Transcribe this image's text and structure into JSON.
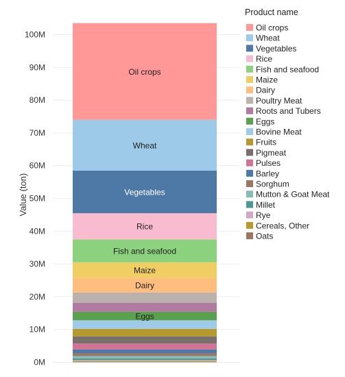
{
  "chart_data": {
    "type": "bar",
    "orientation": "vertical",
    "stacked": true,
    "categories": [
      ""
    ],
    "xlabel": "",
    "ylabel": "Value (ton)",
    "ylim": [
      0,
      107000000
    ],
    "y_ticks": [
      0,
      10000000,
      20000000,
      30000000,
      40000000,
      50000000,
      60000000,
      70000000,
      80000000,
      90000000,
      100000000
    ],
    "y_tick_labels": [
      "0M",
      "10M",
      "20M",
      "30M",
      "40M",
      "50M",
      "60M",
      "70M",
      "80M",
      "90M",
      "100M"
    ],
    "grid": true,
    "legend": {
      "title": "Product name",
      "position": "right"
    },
    "stack_order_top_to_bottom": [
      "Oil crops",
      "Wheat",
      "Vegetables",
      "Rice",
      "Fish and seafood",
      "Maize",
      "Dairy",
      "Poultry Meat",
      "Roots and Tubers",
      "Eggs",
      "Bovine Meat",
      "Fruits",
      "Pigmeat",
      "Pulses",
      "Barley",
      "Sorghum",
      "Mutton & Goat Meat",
      "Millet",
      "Rye",
      "Cereals, Other",
      "Oats"
    ],
    "series": [
      {
        "name": "Oil crops",
        "color": "#ff9896",
        "values": [
          29500000
        ],
        "show_label": true,
        "label_color": "#222222"
      },
      {
        "name": "Wheat",
        "color": "#9ecae9",
        "values": [
          15500000
        ],
        "show_label": true,
        "label_color": "#222222"
      },
      {
        "name": "Vegetables",
        "color": "#4e79a7",
        "values": [
          13000000
        ],
        "show_label": true,
        "label_color": "#ffffff"
      },
      {
        "name": "Rice",
        "color": "#f8bbd0",
        "values": [
          8000000
        ],
        "show_label": true,
        "label_color": "#222222"
      },
      {
        "name": "Fish and seafood",
        "color": "#8cd17d",
        "values": [
          7000000
        ],
        "show_label": true,
        "label_color": "#222222"
      },
      {
        "name": "Maize",
        "color": "#f1ce63",
        "values": [
          4800000
        ],
        "show_label": true,
        "label_color": "#222222"
      },
      {
        "name": "Dairy",
        "color": "#ffbe7d",
        "values": [
          4400000
        ],
        "show_label": true,
        "label_color": "#222222"
      },
      {
        "name": "Poultry Meat",
        "color": "#bab0ac",
        "values": [
          3200000
        ],
        "show_label": false
      },
      {
        "name": "Roots and Tubers",
        "color": "#b07aa1",
        "values": [
          2700000
        ],
        "show_label": false
      },
      {
        "name": "Eggs",
        "color": "#59a14f",
        "values": [
          2600000
        ],
        "show_label": true,
        "label_color": "#222222"
      },
      {
        "name": "Bovine Meat",
        "color": "#a0cbe8",
        "values": [
          2600000
        ],
        "show_label": false
      },
      {
        "name": "Fruits",
        "color": "#b6992d",
        "values": [
          2300000
        ],
        "show_label": false
      },
      {
        "name": "Pigmeat",
        "color": "#79706e",
        "values": [
          2200000
        ],
        "show_label": false
      },
      {
        "name": "Pulses",
        "color": "#d37295",
        "values": [
          1800000
        ],
        "show_label": false
      },
      {
        "name": "Barley",
        "color": "#4e79a7",
        "values": [
          1200000
        ],
        "show_label": false
      },
      {
        "name": "Sorghum",
        "color": "#9d7660",
        "values": [
          800000
        ],
        "show_label": false
      },
      {
        "name": "Mutton & Goat Meat",
        "color": "#86bcb6",
        "values": [
          700000
        ],
        "show_label": false
      },
      {
        "name": "Millet",
        "color": "#499894",
        "values": [
          500000
        ],
        "show_label": false
      },
      {
        "name": "Rye",
        "color": "#d4a6c8",
        "values": [
          300000
        ],
        "show_label": false
      },
      {
        "name": "Cereals, Other",
        "color": "#b6992d",
        "values": [
          250000
        ],
        "show_label": false
      },
      {
        "name": "Oats",
        "color": "#9d7660",
        "values": [
          150000
        ],
        "show_label": false
      }
    ]
  }
}
